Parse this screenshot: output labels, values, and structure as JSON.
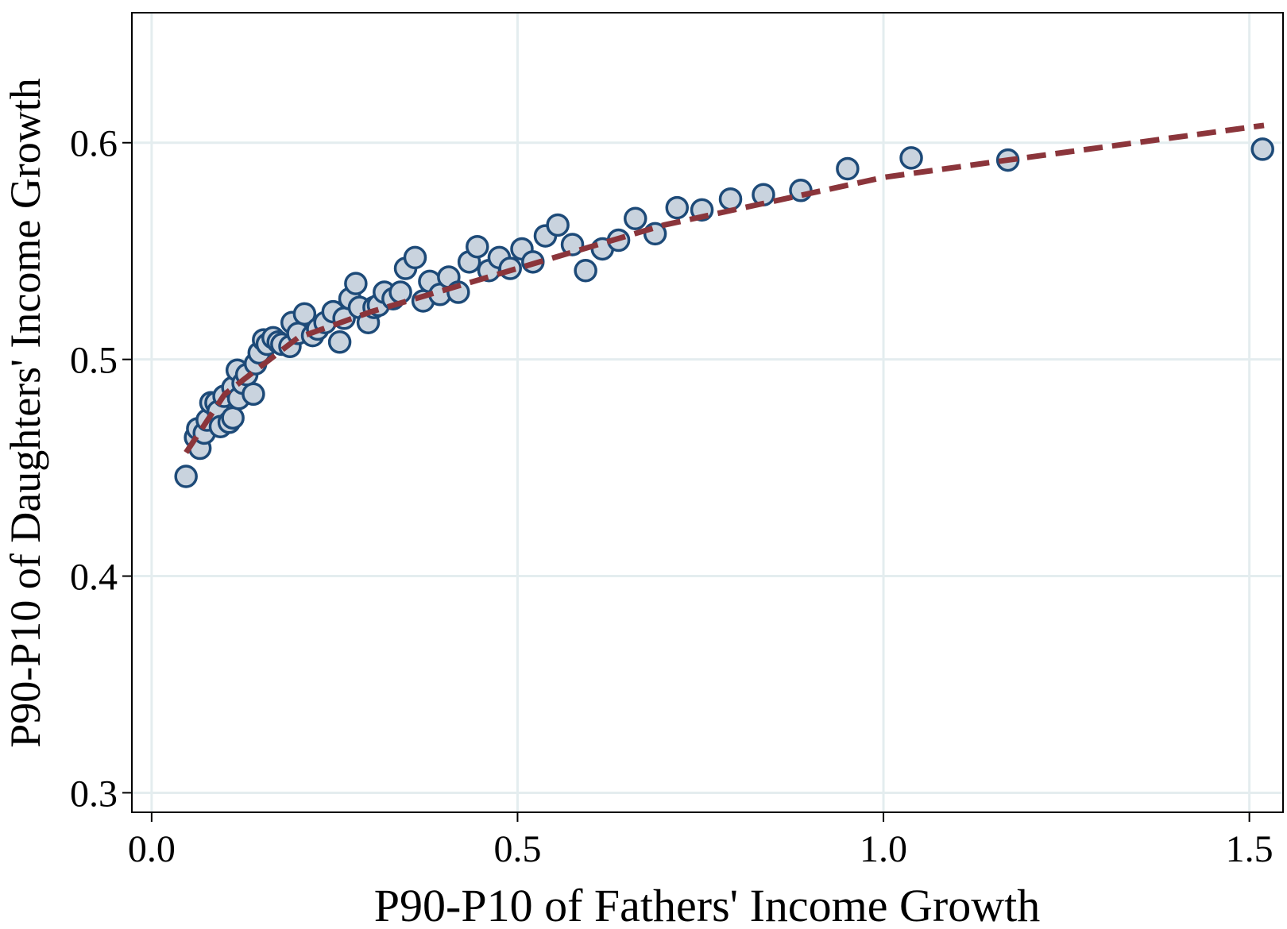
{
  "chart_data": {
    "type": "scatter",
    "xlabel": "P90-P10 of Fathers' Income Growth",
    "ylabel": "P90-P10 of Daughters' Income Growth",
    "xlim": [
      -0.027,
      1.546
    ],
    "ylim": [
      0.291,
      0.66
    ],
    "xticks": [
      {
        "value": 0,
        "label": "0.0"
      },
      0.5,
      {
        "value": 1,
        "label": "1.0"
      },
      1.5
    ],
    "yticks": [
      0.3,
      0.4,
      0.5,
      0.6
    ],
    "grid": true,
    "series": [
      {
        "type": "scatter",
        "color": "#c9d3de",
        "edgecolor": "#1d4a78",
        "x": [
          0.047,
          0.06,
          0.063,
          0.066,
          0.072,
          0.076,
          0.081,
          0.088,
          0.091,
          0.094,
          0.099,
          0.106,
          0.111,
          0.111,
          0.117,
          0.119,
          0.125,
          0.13,
          0.139,
          0.142,
          0.147,
          0.153,
          0.158,
          0.166,
          0.173,
          0.178,
          0.189,
          0.192,
          0.2,
          0.209,
          0.22,
          0.227,
          0.237,
          0.248,
          0.257,
          0.263,
          0.271,
          0.279,
          0.284,
          0.296,
          0.304,
          0.31,
          0.318,
          0.33,
          0.34,
          0.347,
          0.36,
          0.371,
          0.38,
          0.394,
          0.406,
          0.419,
          0.434,
          0.445,
          0.461,
          0.475,
          0.49,
          0.506,
          0.521,
          0.538,
          0.555,
          0.575,
          0.593,
          0.616,
          0.638,
          0.661,
          0.688,
          0.718,
          0.752,
          0.791,
          0.836,
          0.887,
          0.951,
          1.038,
          1.17,
          1.518
        ],
        "values": [
          0.446,
          0.464,
          0.468,
          0.459,
          0.466,
          0.472,
          0.48,
          0.48,
          0.476,
          0.469,
          0.483,
          0.471,
          0.473,
          0.487,
          0.495,
          0.482,
          0.489,
          0.493,
          0.484,
          0.498,
          0.503,
          0.509,
          0.507,
          0.51,
          0.508,
          0.507,
          0.506,
          0.517,
          0.512,
          0.521,
          0.511,
          0.514,
          0.517,
          0.522,
          0.508,
          0.519,
          0.528,
          0.535,
          0.524,
          0.517,
          0.524,
          0.525,
          0.531,
          0.528,
          0.531,
          0.542,
          0.547,
          0.527,
          0.536,
          0.53,
          0.538,
          0.531,
          0.545,
          0.552,
          0.541,
          0.547,
          0.542,
          0.551,
          0.545,
          0.557,
          0.562,
          0.553,
          0.541,
          0.551,
          0.555,
          0.565,
          0.558,
          0.57,
          0.569,
          0.574,
          0.576,
          0.578,
          0.588,
          0.593,
          0.592,
          0.597
        ]
      },
      {
        "type": "line",
        "color": "#8b353b",
        "dashed": true,
        "x": [
          0.047,
          0.1,
          0.2,
          0.3,
          0.5,
          0.7,
          1.0,
          1.17,
          1.52
        ],
        "values": [
          0.457,
          0.484,
          0.51,
          0.522,
          0.542,
          0.562,
          0.584,
          0.592,
          0.608
        ]
      }
    ]
  }
}
